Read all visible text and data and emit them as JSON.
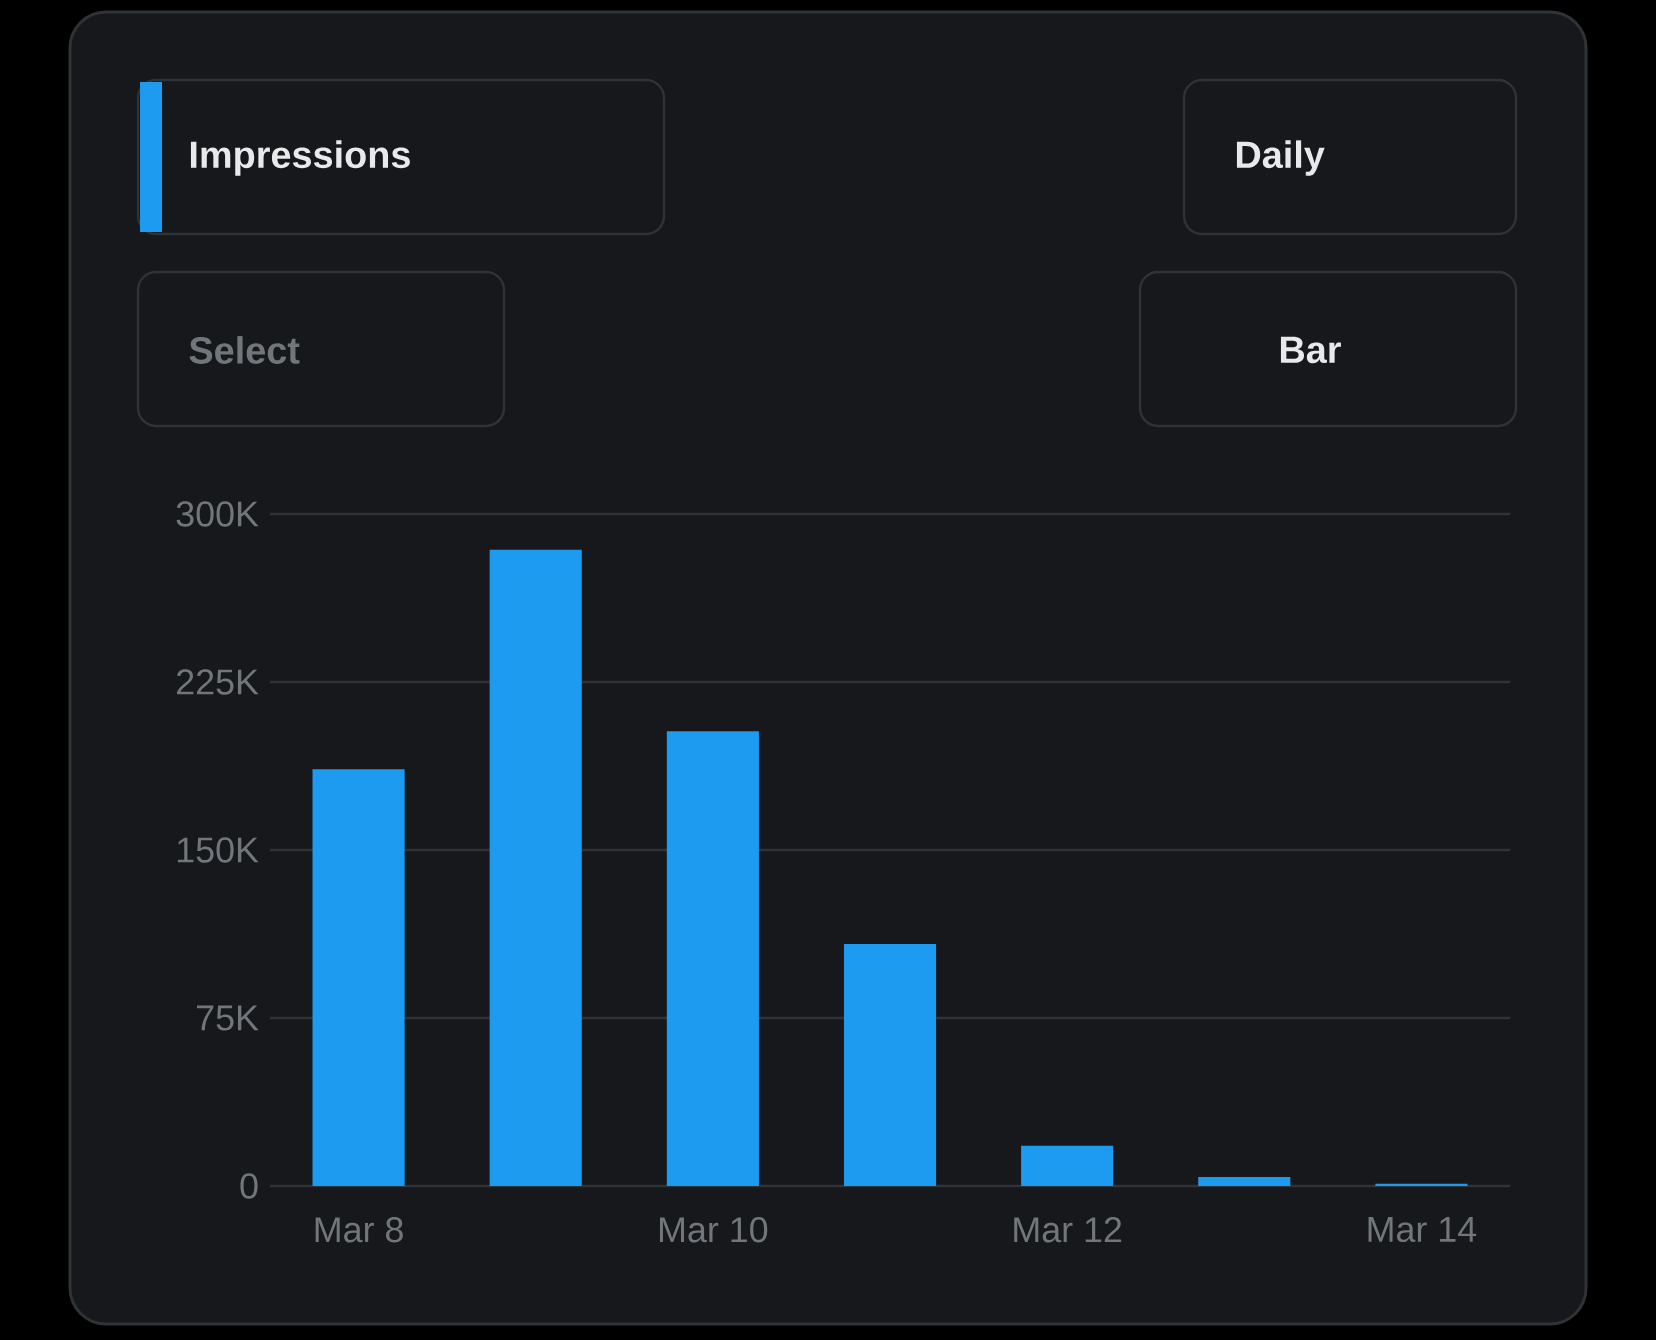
{
  "chart_data": {
    "type": "bar",
    "title": "Impressions",
    "annotations": [
      "Daily",
      "Select",
      "Bar"
    ],
    "categories": [
      "Mar 8",
      null,
      "Mar 10",
      null,
      "Mar 12",
      null,
      "Mar 14"
    ],
    "values": [
      186000,
      284000,
      203000,
      108000,
      18000,
      4000,
      1000
    ],
    "color": "#1d9bf0",
    "ylim": [
      0,
      300000
    ],
    "yticks": [
      {
        "value": 0,
        "label": "0"
      },
      {
        "value": 75000,
        "label": "75K"
      },
      {
        "value": 150000,
        "label": "150K"
      },
      {
        "value": 225000,
        "label": "225K"
      },
      {
        "value": 300000,
        "label": "300K"
      }
    ],
    "grid": "y"
  }
}
